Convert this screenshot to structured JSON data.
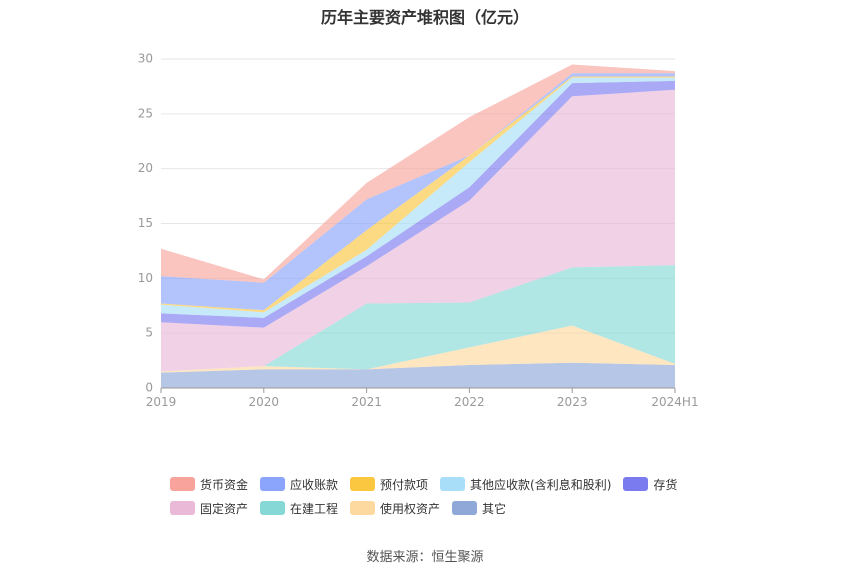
{
  "chart_data": {
    "type": "area",
    "stacked": true,
    "title": "历年主要资产堆积图（亿元）",
    "categories": [
      "2019",
      "2020",
      "2021",
      "2022",
      "2023",
      "2024H1"
    ],
    "ylim": [
      0,
      30
    ],
    "yticks": [
      0,
      5,
      10,
      15,
      20,
      25,
      30
    ],
    "grid": true,
    "legend_position": "bottom",
    "series": [
      {
        "name": "其它",
        "color": "#8fa8d8",
        "values": [
          1.4,
          1.7,
          1.7,
          2.1,
          2.3,
          2.1
        ]
      },
      {
        "name": "使用权资产",
        "color": "#fdd9a0",
        "values": [
          0.1,
          0.3,
          0.0,
          1.6,
          3.4,
          0.1
        ]
      },
      {
        "name": "在建工程",
        "color": "#86d8d6",
        "values": [
          0.0,
          0.0,
          6.0,
          4.1,
          5.3,
          9.0
        ]
      },
      {
        "name": "固定资产",
        "color": "#eab9d8",
        "values": [
          4.5,
          3.5,
          3.4,
          9.3,
          15.6,
          16.0
        ]
      },
      {
        "name": "存货",
        "color": "#7b7bf0",
        "values": [
          0.8,
          0.9,
          0.9,
          1.2,
          1.2,
          0.8
        ]
      },
      {
        "name": "其他应收款(含利息和股利)",
        "color": "#a8def7",
        "values": [
          0.8,
          0.5,
          0.6,
          2.3,
          0.5,
          0.3
        ]
      },
      {
        "name": "预付款项",
        "color": "#fbc640",
        "values": [
          0.1,
          0.2,
          1.8,
          0.6,
          0.1,
          0.1
        ]
      },
      {
        "name": "应收账款",
        "color": "#8aa5fb",
        "values": [
          2.5,
          2.5,
          2.8,
          0.0,
          0.3,
          0.3
        ]
      },
      {
        "name": "货币资金",
        "color": "#f8a49c",
        "values": [
          2.5,
          0.3,
          1.5,
          3.5,
          0.8,
          0.2
        ]
      }
    ],
    "legend_order": [
      "货币资金",
      "应收账款",
      "预付款项",
      "其他应收款(含利息和股利)",
      "存货",
      "固定资产",
      "在建工程",
      "使用权资产",
      "其它"
    ]
  },
  "source": "数据来源：恒生聚源"
}
